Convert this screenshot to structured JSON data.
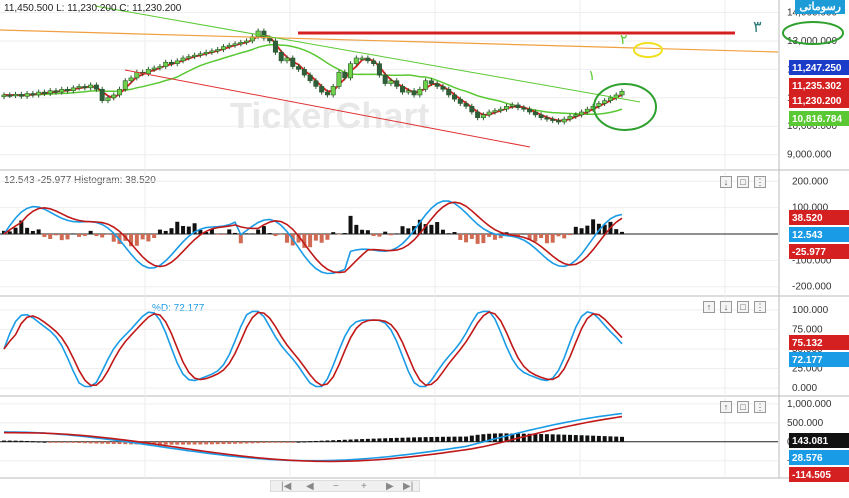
{
  "header": {
    "ohlc_text": "11,450.500  L: 11,230.200  C: 11,230.200",
    "logo_text": "رسوماتی",
    "watermark": "TickerChart"
  },
  "annotations": {
    "label_1": "١",
    "label_2": "٢",
    "label_3": "٣"
  },
  "chart_data": [
    {
      "type": "candlestick",
      "pane": "price",
      "y_ticks": [
        "14,000.000",
        "13,000.000",
        "12,000.000",
        "11,000.000",
        "10,000.000",
        "9,000.000"
      ],
      "ylim": [
        8600,
        14300
      ],
      "price_badges": [
        {
          "value": "11,247.250",
          "color": "#1a3cc8"
        },
        {
          "value": "11,235.302",
          "color": "#d42020"
        },
        {
          "value": "11,230.200",
          "color": "#d42020"
        },
        {
          "value": "10,816.784",
          "color": "#5ac832"
        }
      ],
      "closes": [
        11100,
        11080,
        11120,
        11050,
        11150,
        11100,
        11200,
        11150,
        11250,
        11200,
        11300,
        11250,
        11350,
        11400,
        11350,
        11450,
        11300,
        10900,
        11000,
        11100,
        11300,
        11600,
        11700,
        11900,
        11850,
        12000,
        12050,
        12100,
        12250,
        12200,
        12300,
        12400,
        12450,
        12500,
        12550,
        12600,
        12650,
        12700,
        12800,
        12850,
        12900,
        12950,
        13000,
        13150,
        13350,
        13100,
        13000,
        12600,
        12300,
        12400,
        12100,
        12000,
        11800,
        11600,
        11400,
        11200,
        11100,
        11400,
        11900,
        11700,
        12200,
        12400,
        12400,
        12300,
        12200,
        11800,
        11500,
        11600,
        11400,
        11200,
        11250,
        11100,
        11300,
        11600,
        11500,
        11400,
        11300,
        11100,
        10950,
        10800,
        10700,
        10500,
        10300,
        10400,
        10500,
        10550,
        10600,
        10700,
        10750,
        10650,
        10600,
        10500,
        10400,
        10300,
        10250,
        10200,
        10150,
        10250,
        10350,
        10400,
        10500,
        10600,
        10700,
        10800,
        10900,
        11000,
        11100,
        11230
      ]
    },
    {
      "type": "macd",
      "pane": "macd",
      "legend": "12.543  -25.977  Histogram: 38.520",
      "y_ticks": [
        "200.000",
        "100.000",
        "0.000",
        "-100.000",
        "-200.000"
      ],
      "ylim": [
        -220,
        220
      ],
      "badges": [
        {
          "value": "38.520",
          "color": "#d42020"
        },
        {
          "value": "12.543",
          "color": "#1a9be6"
        },
        {
          "value": "-25.977",
          "color": "#d42020"
        }
      ]
    },
    {
      "type": "stochastic",
      "pane": "stoch",
      "legend": "%D:  72.177",
      "y_ticks": [
        "100.000",
        "75.000",
        "50.000",
        "25.000",
        "0.000"
      ],
      "ylim": [
        -5,
        110
      ],
      "badges": [
        {
          "value": "75.132",
          "color": "#d42020"
        },
        {
          "value": "72.177",
          "color": "#1a9be6"
        }
      ]
    },
    {
      "type": "oscillator",
      "pane": "osc",
      "y_ticks": [
        "1,000.000",
        "500.000",
        "0.000",
        "-500.000"
      ],
      "ylim": [
        -850,
        1050
      ],
      "badges": [
        {
          "value": "143.081",
          "color": "#111111"
        },
        {
          "value": "28.576",
          "color": "#1a9be6"
        },
        {
          "value": "-114.505",
          "color": "#d42020"
        }
      ]
    }
  ]
}
